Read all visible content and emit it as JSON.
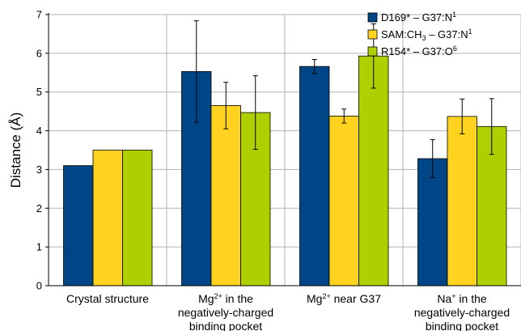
{
  "chart_data": {
    "type": "bar",
    "title": "",
    "xlabel": "",
    "ylabel": "Distance (Å)",
    "ylim": [
      0,
      7
    ],
    "yticks": [
      0,
      1,
      2,
      3,
      4,
      5,
      6,
      7
    ],
    "grid": "horizontal",
    "legend_position": "top-right",
    "categories": [
      [
        "Crystal structure"
      ],
      [
        {
          "t": "Mg"
        },
        {
          "t": "2+",
          "sup": true
        },
        {
          "t": " in the"
        },
        "\n",
        {
          "t": "negatively-charged"
        },
        "\n",
        {
          "t": "binding pocket"
        }
      ],
      [
        {
          "t": "Mg"
        },
        {
          "t": "2+",
          "sup": true
        },
        {
          "t": " near G37"
        }
      ],
      [
        {
          "t": "Na"
        },
        {
          "t": "+",
          "sup": true
        },
        {
          "t": " in the"
        },
        "\n",
        {
          "t": "negatively-charged"
        },
        "\n",
        {
          "t": "binding pocket"
        }
      ]
    ],
    "series": [
      {
        "name": [
          {
            "t": "D169* – G37:N"
          },
          {
            "t": "1",
            "sup": true
          }
        ],
        "color": "#004586",
        "values": [
          3.1,
          5.53,
          5.66,
          3.28
        ],
        "errors": [
          null,
          1.31,
          0.18,
          0.49
        ]
      },
      {
        "name": [
          {
            "t": "SAM:CH"
          },
          {
            "t": "3",
            "sub": true
          },
          {
            "t": " – G37:N"
          },
          {
            "t": "1",
            "sup": true
          }
        ],
        "color": "#ffd320",
        "values": [
          3.5,
          4.65,
          4.38,
          4.37
        ],
        "errors": [
          null,
          0.6,
          0.18,
          0.45
        ]
      },
      {
        "name": [
          {
            "t": "R154* – G37:O"
          },
          {
            "t": "6",
            "sup": true
          }
        ],
        "color": "#aecf00",
        "values": [
          3.5,
          4.47,
          5.93,
          4.11
        ],
        "errors": [
          null,
          0.95,
          0.83,
          0.72
        ]
      }
    ]
  }
}
